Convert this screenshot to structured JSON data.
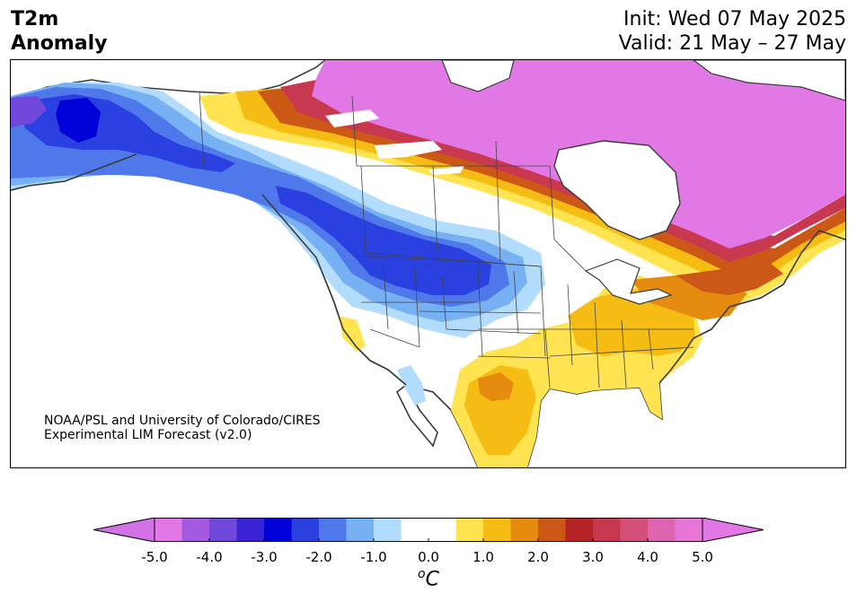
{
  "title": {
    "left_line1": "T2m",
    "left_line2": "Anomaly",
    "right_line1": "Init: Wed 07 May 2025",
    "right_line2": "Valid: 21 May – 27 May"
  },
  "credit": {
    "line1": "NOAA/PSL and University of Colorado/CIRES",
    "line2": "Experimental LIM Forecast (v2.0)"
  },
  "colorbar": {
    "unit_base": "C",
    "unit_sup": "o",
    "ticks": [
      "-5.0",
      "-4.0",
      "-3.0",
      "-2.0",
      "-1.0",
      "0.0",
      "1.0",
      "2.0",
      "3.0",
      "4.0",
      "5.0"
    ],
    "colors": [
      "#e277e6",
      "#a35ae0",
      "#7048dc",
      "#3a24d6",
      "#0000d8",
      "#2a40e0",
      "#4f78ea",
      "#78b0f4",
      "#b2dcfc",
      "#ffffff",
      "#ffffff",
      "#ffe350",
      "#f5bc14",
      "#e58c10",
      "#cc5818",
      "#b52424",
      "#c8384e",
      "#d2507a",
      "#dc64b0",
      "#e676d8"
    ],
    "under_color": "#d271e6",
    "over_color": "#e277e6"
  },
  "map": {
    "region": "North America",
    "variable": "2m temperature anomaly"
  }
}
